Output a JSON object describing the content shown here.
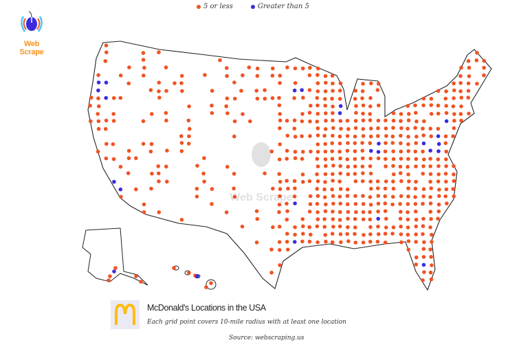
{
  "legend": {
    "items": [
      {
        "label": "5 or less",
        "color": "#f05323"
      },
      {
        "label": "Greater than 5",
        "color": "#3a2be0"
      }
    ]
  },
  "logo": {
    "text": "Web Scrape",
    "icon": "spider-mouse-icon",
    "text_color": "#f7941d"
  },
  "watermark": {
    "text": "Web Scrape"
  },
  "caption": {
    "title": "McDonald's Locations in the USA",
    "subtitle": "Each grid point covers 10-mile radius with at least one location",
    "source": "Source: webscraping.us",
    "brand_icon": "mcdonalds-arches-icon",
    "brand_color": "#ffbc0d"
  }
}
